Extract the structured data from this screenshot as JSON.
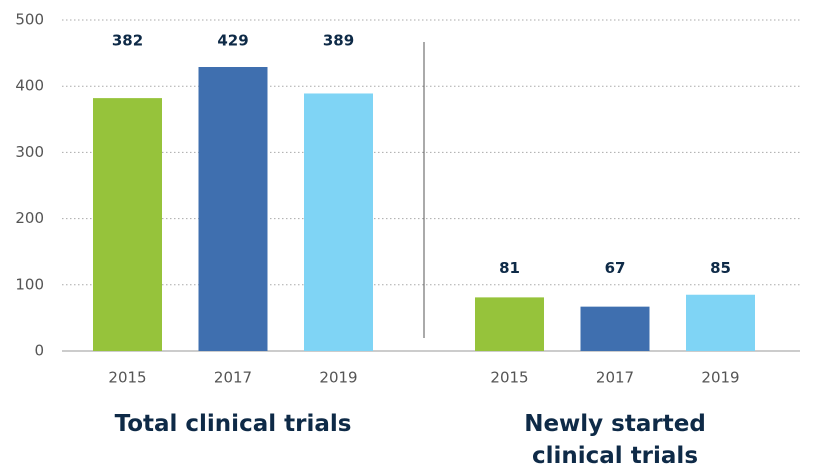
{
  "chart_data": {
    "type": "bar",
    "groups": [
      {
        "name": "Total clinical trials",
        "categories": [
          "2015",
          "2017",
          "2019"
        ],
        "values": [
          382,
          429,
          389
        ]
      },
      {
        "name": "Newly started clinical trials",
        "categories": [
          "2015",
          "2017",
          "2019"
        ],
        "values": [
          81,
          67,
          85
        ]
      }
    ],
    "colors": [
      "#96c33b",
      "#3f6faf",
      "#7fd4f5"
    ],
    "ylim": [
      0,
      500
    ],
    "yticks": [
      0,
      100,
      200,
      300,
      400,
      500
    ],
    "grid": true
  }
}
